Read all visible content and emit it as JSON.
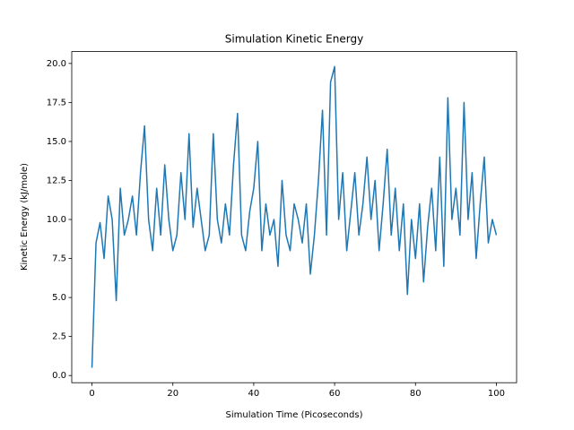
{
  "chart_data": {
    "type": "line",
    "title": "Simulation Kinetic Energy",
    "x_label": "Simulation Time (Picoseconds)",
    "y_label": "Kinetic Energy (kJ/mole)",
    "x": [
      0,
      1,
      2,
      3,
      4,
      5,
      6,
      7,
      8,
      9,
      10,
      11,
      12,
      13,
      14,
      15,
      16,
      17,
      18,
      19,
      20,
      21,
      22,
      23,
      24,
      25,
      26,
      27,
      28,
      29,
      30,
      31,
      32,
      33,
      34,
      35,
      36,
      37,
      38,
      39,
      40,
      41,
      42,
      43,
      44,
      45,
      46,
      47,
      48,
      49,
      50,
      51,
      52,
      53,
      54,
      55,
      56,
      57,
      58,
      59,
      60,
      61,
      62,
      63,
      64,
      65,
      66,
      67,
      68,
      69,
      70,
      71,
      72,
      73,
      74,
      75,
      76,
      77,
      78,
      79,
      80,
      81,
      82,
      83,
      84,
      85,
      86,
      87,
      88,
      89,
      90,
      91,
      92,
      93,
      94,
      95,
      96,
      97,
      98,
      99,
      100
    ],
    "series": [
      {
        "name": "Kinetic Energy",
        "color": "#1f77b4",
        "values": [
          0.5,
          8.5,
          9.8,
          7.5,
          11.5,
          10,
          4.8,
          12,
          9,
          10,
          11.5,
          9,
          13,
          16,
          10,
          8,
          12,
          9,
          13.5,
          10,
          8,
          9,
          13,
          10,
          15.5,
          9.5,
          12,
          10,
          8,
          9,
          15.5,
          10,
          8.5,
          11,
          9,
          13.5,
          16.8,
          9,
          8,
          10.5,
          12,
          15,
          8,
          11,
          9,
          10,
          7,
          12.5,
          9,
          8,
          11,
          10,
          8.5,
          11,
          6.5,
          9,
          12.5,
          17,
          9,
          18.8,
          19.8,
          10,
          13,
          8,
          10.5,
          13,
          9,
          11,
          14,
          10,
          12.5,
          8,
          11,
          14.5,
          9,
          12,
          8,
          11,
          5.2,
          10,
          7.5,
          11,
          6,
          9.5,
          12,
          8,
          14,
          7,
          17.8,
          10,
          12,
          9,
          17.5,
          10,
          13,
          7.5,
          11,
          14,
          8.5,
          10,
          9
        ]
      }
    ],
    "xlim": [
      -5,
      105
    ],
    "xticks": [
      0,
      20,
      40,
      60,
      80,
      100
    ],
    "ylim": [
      -0.46,
      20.76
    ],
    "yticks": [
      {
        "value": 0,
        "label": "0.0"
      },
      2.5,
      {
        "value": 5,
        "label": "5.0"
      },
      7.5,
      {
        "value": 10,
        "label": "10.0"
      },
      12.5,
      {
        "value": 15,
        "label": "15.0"
      },
      17.5,
      {
        "value": 20,
        "label": "20.0"
      }
    ]
  }
}
